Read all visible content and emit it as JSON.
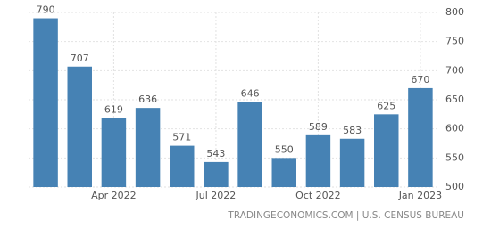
{
  "chart_data": {
    "type": "bar",
    "categories": [
      null,
      null,
      "Apr 2022",
      null,
      null,
      "Jul 2022",
      null,
      null,
      "Oct 2022",
      null,
      null,
      "Jan 2023"
    ],
    "values": [
      790,
      707,
      619,
      636,
      571,
      543,
      646,
      550,
      589,
      583,
      625,
      670
    ],
    "color": "#4682b4",
    "ylim": [
      500,
      800
    ],
    "yticks": [
      500,
      550,
      600,
      650,
      700,
      750,
      800
    ],
    "grid": true,
    "source": "TRADINGECONOMICS.COM | U.S. CENSUS BUREAU"
  }
}
